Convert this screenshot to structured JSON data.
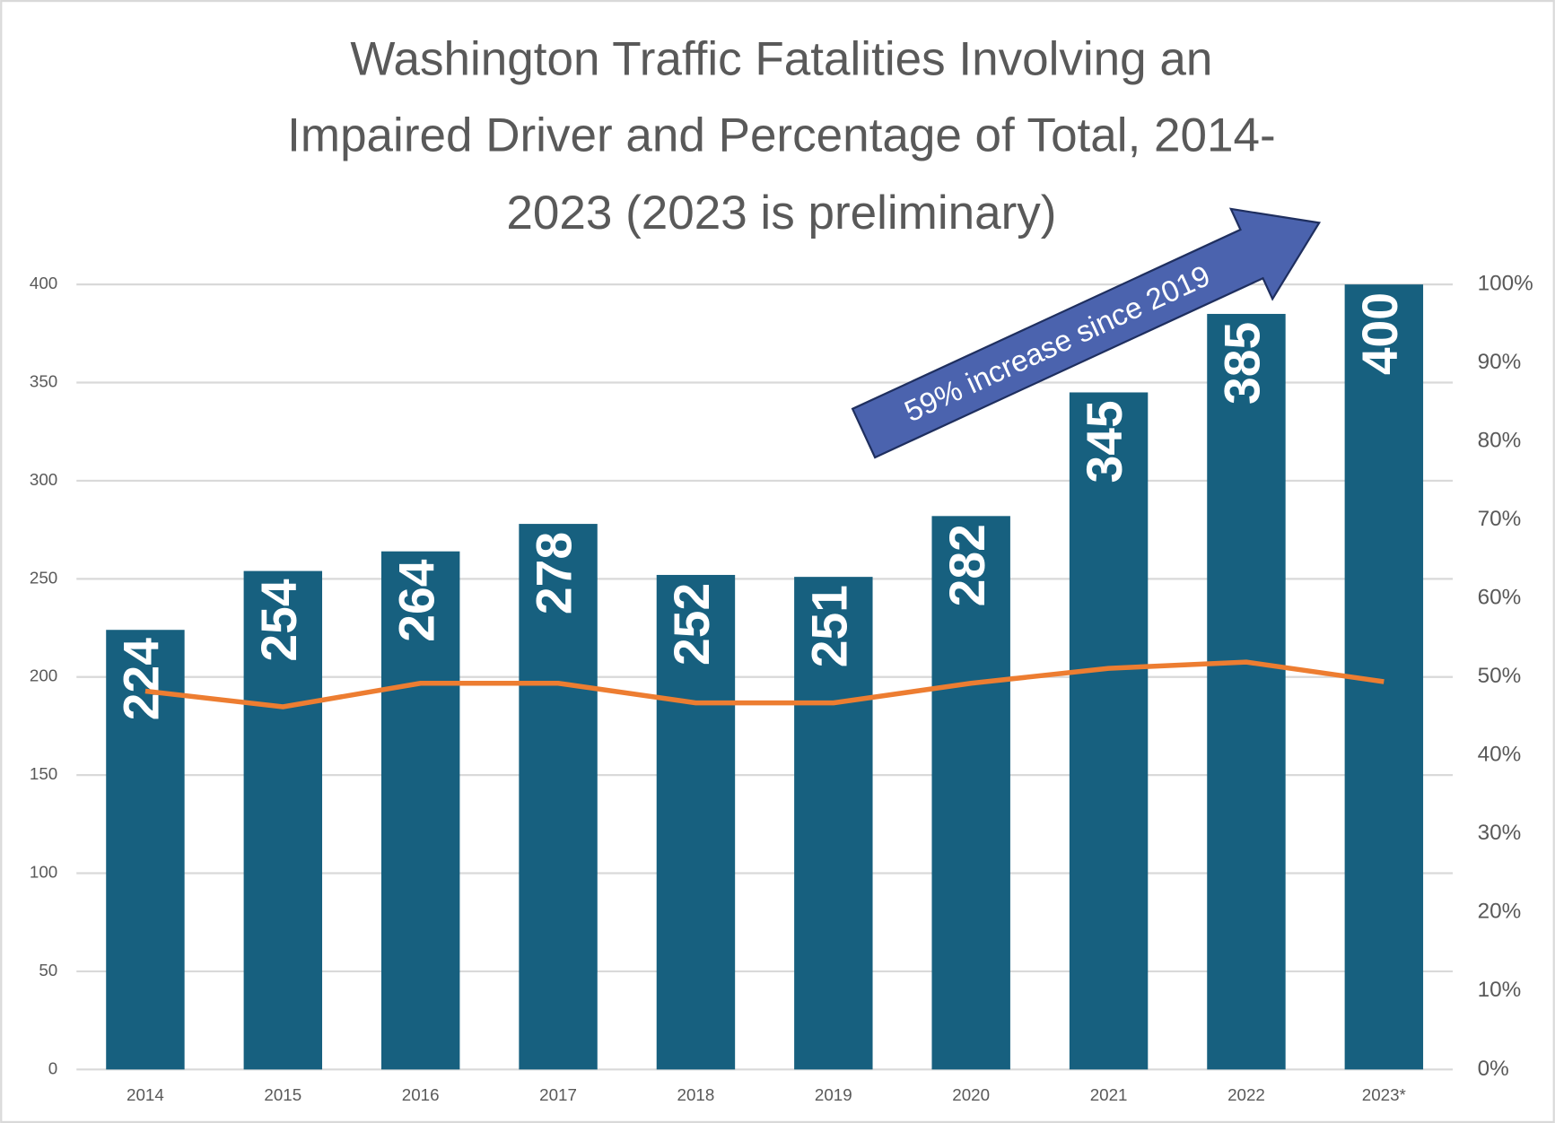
{
  "chart_data": {
    "type": "bar",
    "title": [
      "Washington Traffic Fatalities Involving an",
      "Impaired Driver and Percentage of Total, 2014-",
      "2023 (2023 is preliminary)"
    ],
    "categories": [
      "2014",
      "2015",
      "2016",
      "2017",
      "2018",
      "2019",
      "2020",
      "2021",
      "2022",
      "2023*"
    ],
    "series": [
      {
        "type": "bar",
        "color": "#17607f",
        "values": [
          224,
          254,
          264,
          278,
          252,
          251,
          282,
          345,
          385,
          400
        ]
      },
      {
        "type": "line",
        "axis": "y2",
        "color": "#ed7d31",
        "values": [
          48.2,
          46.2,
          49.2,
          49.2,
          46.7,
          46.7,
          49.2,
          51.1,
          51.9,
          49.4
        ]
      }
    ],
    "ylim": [
      0,
      400
    ],
    "yticks": [
      0,
      50,
      100,
      150,
      200,
      250,
      300,
      350,
      400
    ],
    "y2lim": [
      0,
      100
    ],
    "y2ticks": [
      {
        "value": 0,
        "label": "0%"
      },
      {
        "value": 10,
        "label": "10%"
      },
      {
        "value": 20,
        "label": "20%"
      },
      {
        "value": 30,
        "label": "30%"
      },
      {
        "value": 40,
        "label": "40%"
      },
      {
        "value": 50,
        "label": "50%"
      },
      {
        "value": 60,
        "label": "60%"
      },
      {
        "value": 70,
        "label": "70%"
      },
      {
        "value": 80,
        "label": "80%"
      },
      {
        "value": 90,
        "label": "90%"
      },
      {
        "value": 100,
        "label": "100%"
      }
    ],
    "grid": true,
    "annotation": "59% increase since 2019"
  }
}
